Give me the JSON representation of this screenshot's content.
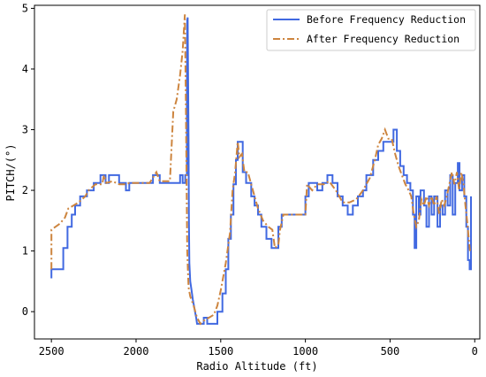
{
  "chart_data": {
    "type": "line",
    "title": "",
    "xlabel": "Radio Altitude (ft)",
    "ylabel": "PITCH/(°)",
    "xlim": [
      2600,
      -30
    ],
    "ylim": [
      -0.45,
      5.05
    ],
    "x_reversed": true,
    "xticks": [
      2500,
      2000,
      1500,
      1000,
      500,
      0
    ],
    "yticks": [
      0,
      1,
      2,
      3,
      4,
      5
    ],
    "grid": false,
    "legend_position": "top-right",
    "series": [
      {
        "name": "Before Frequency Reduction",
        "color": "#4169e1",
        "style": "solid-step",
        "points": [
          [
            2500,
            0.55
          ],
          [
            2500,
            0.7
          ],
          [
            2430,
            0.7
          ],
          [
            2430,
            1.05
          ],
          [
            2405,
            1.05
          ],
          [
            2405,
            1.4
          ],
          [
            2380,
            1.4
          ],
          [
            2380,
            1.6
          ],
          [
            2360,
            1.6
          ],
          [
            2360,
            1.75
          ],
          [
            2330,
            1.75
          ],
          [
            2330,
            1.9
          ],
          [
            2290,
            1.9
          ],
          [
            2290,
            2.0
          ],
          [
            2250,
            2.0
          ],
          [
            2250,
            2.12
          ],
          [
            2210,
            2.12
          ],
          [
            2210,
            2.25
          ],
          [
            2180,
            2.25
          ],
          [
            2180,
            2.12
          ],
          [
            2160,
            2.12
          ],
          [
            2160,
            2.25
          ],
          [
            2100,
            2.25
          ],
          [
            2100,
            2.12
          ],
          [
            2060,
            2.12
          ],
          [
            2060,
            2.0
          ],
          [
            2040,
            2.0
          ],
          [
            2040,
            2.12
          ],
          [
            1900,
            2.12
          ],
          [
            1900,
            2.25
          ],
          [
            1860,
            2.25
          ],
          [
            1860,
            2.12
          ],
          [
            1740,
            2.12
          ],
          [
            1740,
            2.25
          ],
          [
            1725,
            2.25
          ],
          [
            1725,
            2.12
          ],
          [
            1710,
            2.12
          ],
          [
            1710,
            2.25
          ],
          [
            1700,
            2.25
          ],
          [
            1700,
            3.5
          ],
          [
            1698,
            4.8
          ],
          [
            1695,
            4.85
          ],
          [
            1693,
            4.0
          ],
          [
            1690,
            2.8
          ],
          [
            1688,
            1.5
          ],
          [
            1685,
            0.8
          ],
          [
            1680,
            0.5
          ],
          [
            1672,
            0.35
          ],
          [
            1665,
            0.2
          ],
          [
            1658,
            0.1
          ],
          [
            1652,
            0.0
          ],
          [
            1645,
            -0.1
          ],
          [
            1640,
            -0.2
          ],
          [
            1600,
            -0.2
          ],
          [
            1600,
            -0.1
          ],
          [
            1580,
            -0.1
          ],
          [
            1580,
            -0.2
          ],
          [
            1520,
            -0.2
          ],
          [
            1520,
            0.0
          ],
          [
            1490,
            0.0
          ],
          [
            1490,
            0.3
          ],
          [
            1470,
            0.3
          ],
          [
            1470,
            0.7
          ],
          [
            1455,
            0.7
          ],
          [
            1455,
            1.2
          ],
          [
            1440,
            1.2
          ],
          [
            1440,
            1.6
          ],
          [
            1425,
            1.6
          ],
          [
            1425,
            2.1
          ],
          [
            1410,
            2.1
          ],
          [
            1410,
            2.5
          ],
          [
            1400,
            2.5
          ],
          [
            1400,
            2.8
          ],
          [
            1370,
            2.8
          ],
          [
            1370,
            2.3
          ],
          [
            1350,
            2.3
          ],
          [
            1350,
            2.12
          ],
          [
            1320,
            2.12
          ],
          [
            1320,
            1.9
          ],
          [
            1300,
            1.9
          ],
          [
            1300,
            1.75
          ],
          [
            1280,
            1.75
          ],
          [
            1280,
            1.6
          ],
          [
            1260,
            1.6
          ],
          [
            1260,
            1.4
          ],
          [
            1230,
            1.4
          ],
          [
            1230,
            1.2
          ],
          [
            1200,
            1.2
          ],
          [
            1200,
            1.05
          ],
          [
            1160,
            1.05
          ],
          [
            1160,
            1.4
          ],
          [
            1140,
            1.4
          ],
          [
            1140,
            1.6
          ],
          [
            1000,
            1.6
          ],
          [
            1000,
            1.9
          ],
          [
            980,
            1.9
          ],
          [
            980,
            2.12
          ],
          [
            930,
            2.12
          ],
          [
            930,
            2.0
          ],
          [
            900,
            2.0
          ],
          [
            900,
            2.12
          ],
          [
            870,
            2.12
          ],
          [
            870,
            2.25
          ],
          [
            840,
            2.25
          ],
          [
            840,
            2.12
          ],
          [
            810,
            2.12
          ],
          [
            810,
            1.9
          ],
          [
            780,
            1.9
          ],
          [
            780,
            1.75
          ],
          [
            750,
            1.75
          ],
          [
            750,
            1.6
          ],
          [
            720,
            1.6
          ],
          [
            720,
            1.75
          ],
          [
            690,
            1.75
          ],
          [
            690,
            1.9
          ],
          [
            660,
            1.9
          ],
          [
            660,
            2.0
          ],
          [
            640,
            2.0
          ],
          [
            640,
            2.25
          ],
          [
            600,
            2.25
          ],
          [
            600,
            2.5
          ],
          [
            570,
            2.5
          ],
          [
            570,
            2.65
          ],
          [
            540,
            2.65
          ],
          [
            540,
            2.8
          ],
          [
            480,
            2.8
          ],
          [
            480,
            3.0
          ],
          [
            460,
            3.0
          ],
          [
            460,
            2.65
          ],
          [
            440,
            2.65
          ],
          [
            440,
            2.4
          ],
          [
            420,
            2.4
          ],
          [
            420,
            2.25
          ],
          [
            400,
            2.25
          ],
          [
            400,
            2.12
          ],
          [
            380,
            2.12
          ],
          [
            380,
            2.0
          ],
          [
            365,
            2.0
          ],
          [
            365,
            1.6
          ],
          [
            355,
            1.6
          ],
          [
            355,
            1.05
          ],
          [
            345,
            1.05
          ],
          [
            345,
            1.9
          ],
          [
            330,
            1.9
          ],
          [
            330,
            1.6
          ],
          [
            320,
            1.6
          ],
          [
            320,
            2.0
          ],
          [
            300,
            2.0
          ],
          [
            300,
            1.75
          ],
          [
            285,
            1.75
          ],
          [
            285,
            1.4
          ],
          [
            270,
            1.4
          ],
          [
            270,
            1.9
          ],
          [
            255,
            1.9
          ],
          [
            255,
            1.6
          ],
          [
            240,
            1.6
          ],
          [
            240,
            1.9
          ],
          [
            220,
            1.9
          ],
          [
            220,
            1.4
          ],
          [
            205,
            1.4
          ],
          [
            205,
            1.75
          ],
          [
            190,
            1.75
          ],
          [
            190,
            1.6
          ],
          [
            175,
            1.6
          ],
          [
            175,
            2.0
          ],
          [
            160,
            2.0
          ],
          [
            160,
            1.75
          ],
          [
            145,
            1.75
          ],
          [
            145,
            2.25
          ],
          [
            130,
            2.25
          ],
          [
            130,
            1.6
          ],
          [
            115,
            1.6
          ],
          [
            115,
            2.12
          ],
          [
            100,
            2.12
          ],
          [
            100,
            2.45
          ],
          [
            90,
            2.45
          ],
          [
            90,
            2.0
          ],
          [
            75,
            2.0
          ],
          [
            75,
            2.25
          ],
          [
            62,
            2.25
          ],
          [
            62,
            1.9
          ],
          [
            50,
            1.9
          ],
          [
            50,
            1.4
          ],
          [
            40,
            1.4
          ],
          [
            40,
            0.85
          ],
          [
            30,
            0.85
          ],
          [
            30,
            0.7
          ],
          [
            22,
            0.7
          ],
          [
            22,
            1.9
          ]
        ]
      },
      {
        "name": "After Frequency Reduction",
        "color": "#cd853f",
        "style": "dashdot",
        "points": [
          [
            2500,
            0.7
          ],
          [
            2500,
            1.35
          ],
          [
            2450,
            1.45
          ],
          [
            2420,
            1.55
          ],
          [
            2400,
            1.7
          ],
          [
            2370,
            1.75
          ],
          [
            2340,
            1.8
          ],
          [
            2300,
            1.9
          ],
          [
            2280,
            2.0
          ],
          [
            2240,
            2.1
          ],
          [
            2200,
            2.1
          ],
          [
            2190,
            2.25
          ],
          [
            2175,
            2.12
          ],
          [
            2140,
            2.15
          ],
          [
            2100,
            2.1
          ],
          [
            2060,
            2.1
          ],
          [
            2040,
            2.12
          ],
          [
            1920,
            2.12
          ],
          [
            1880,
            2.3
          ],
          [
            1860,
            2.15
          ],
          [
            1800,
            2.15
          ],
          [
            1780,
            3.3
          ],
          [
            1760,
            3.5
          ],
          [
            1740,
            3.9
          ],
          [
            1725,
            4.3
          ],
          [
            1712,
            4.9
          ],
          [
            1710,
            4.4
          ],
          [
            1706,
            3.5
          ],
          [
            1702,
            2.2
          ],
          [
            1698,
            1.0
          ],
          [
            1694,
            0.7
          ],
          [
            1690,
            0.4
          ],
          [
            1680,
            0.25
          ],
          [
            1660,
            0.1
          ],
          [
            1640,
            -0.1
          ],
          [
            1620,
            -0.2
          ],
          [
            1600,
            -0.15
          ],
          [
            1570,
            -0.1
          ],
          [
            1540,
            -0.05
          ],
          [
            1520,
            0.1
          ],
          [
            1500,
            0.35
          ],
          [
            1470,
            0.8
          ],
          [
            1445,
            1.3
          ],
          [
            1430,
            2.0
          ],
          [
            1415,
            2.3
          ],
          [
            1400,
            2.8
          ],
          [
            1390,
            2.55
          ],
          [
            1375,
            2.6
          ],
          [
            1360,
            2.3
          ],
          [
            1340,
            2.3
          ],
          [
            1320,
            2.1
          ],
          [
            1300,
            1.9
          ],
          [
            1280,
            1.7
          ],
          [
            1250,
            1.5
          ],
          [
            1220,
            1.4
          ],
          [
            1195,
            1.35
          ],
          [
            1180,
            1.05
          ],
          [
            1160,
            1.1
          ],
          [
            1150,
            1.35
          ],
          [
            1130,
            1.6
          ],
          [
            1000,
            1.6
          ],
          [
            990,
            2.1
          ],
          [
            960,
            2.0
          ],
          [
            930,
            2.1
          ],
          [
            890,
            2.1
          ],
          [
            860,
            2.15
          ],
          [
            820,
            2.0
          ],
          [
            780,
            1.8
          ],
          [
            740,
            1.8
          ],
          [
            700,
            1.85
          ],
          [
            660,
            2.0
          ],
          [
            620,
            2.2
          ],
          [
            590,
            2.5
          ],
          [
            570,
            2.75
          ],
          [
            550,
            2.85
          ],
          [
            530,
            3.0
          ],
          [
            510,
            2.85
          ],
          [
            490,
            2.85
          ],
          [
            470,
            2.6
          ],
          [
            450,
            2.4
          ],
          [
            430,
            2.25
          ],
          [
            410,
            2.1
          ],
          [
            390,
            2.0
          ],
          [
            375,
            1.9
          ],
          [
            360,
            1.6
          ],
          [
            345,
            1.4
          ],
          [
            330,
            1.5
          ],
          [
            315,
            1.85
          ],
          [
            300,
            1.75
          ],
          [
            285,
            1.9
          ],
          [
            270,
            1.75
          ],
          [
            255,
            1.9
          ],
          [
            240,
            1.75
          ],
          [
            225,
            1.9
          ],
          [
            210,
            1.6
          ],
          [
            195,
            1.85
          ],
          [
            180,
            1.75
          ],
          [
            165,
            1.9
          ],
          [
            150,
            2.1
          ],
          [
            135,
            2.3
          ],
          [
            120,
            2.1
          ],
          [
            105,
            2.3
          ],
          [
            92,
            2.0
          ],
          [
            80,
            2.3
          ],
          [
            66,
            2.1
          ],
          [
            55,
            1.75
          ],
          [
            45,
            1.5
          ],
          [
            35,
            1.2
          ],
          [
            28,
            1.0
          ]
        ]
      }
    ]
  }
}
